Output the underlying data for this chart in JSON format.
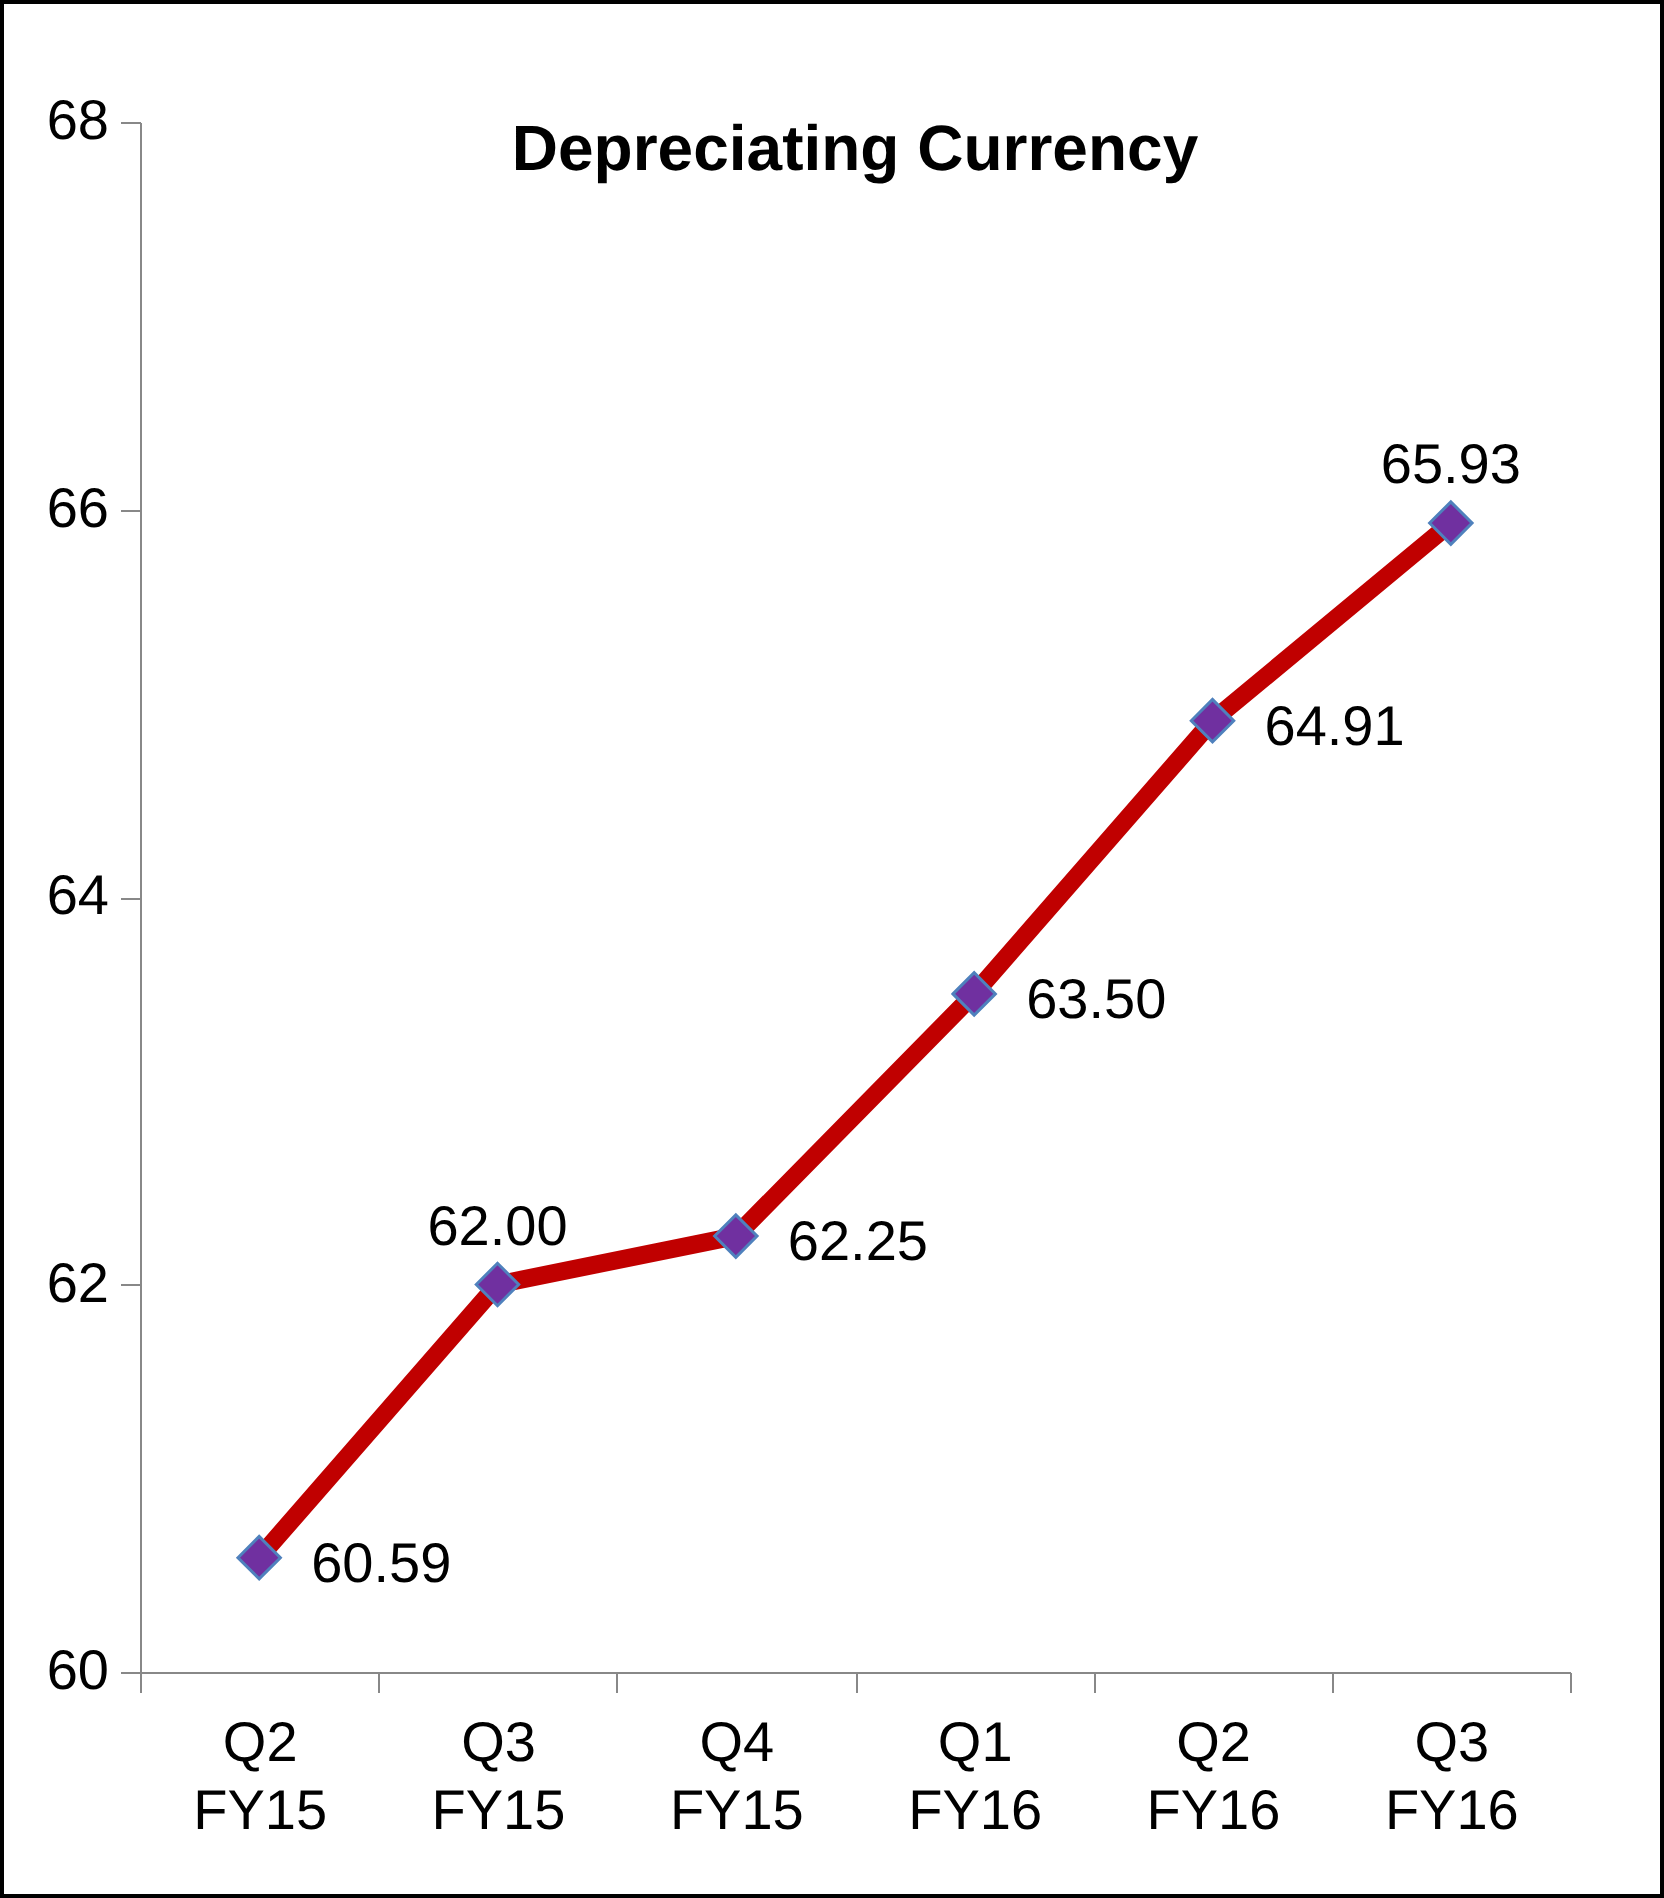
{
  "chart_data": {
    "type": "line",
    "title": "Depreciating Currency",
    "categories": [
      "Q2 FY15",
      "Q3 FY15",
      "Q4 FY15",
      "Q1 FY16",
      "Q2 FY16",
      "Q3 FY16"
    ],
    "series": [
      {
        "color": "#c00000",
        "values": [
          60.59,
          62.0,
          62.25,
          63.5,
          64.91,
          65.93
        ]
      }
    ],
    "value_labels": [
      "60.59",
      "62.00",
      "62.25",
      "63.50",
      "64.91",
      "65.93"
    ],
    "ylim": [
      60,
      68
    ],
    "yticks": [
      60,
      62,
      64,
      66,
      68
    ],
    "grid": false,
    "marker": "diamond",
    "line_style": "solid"
  }
}
